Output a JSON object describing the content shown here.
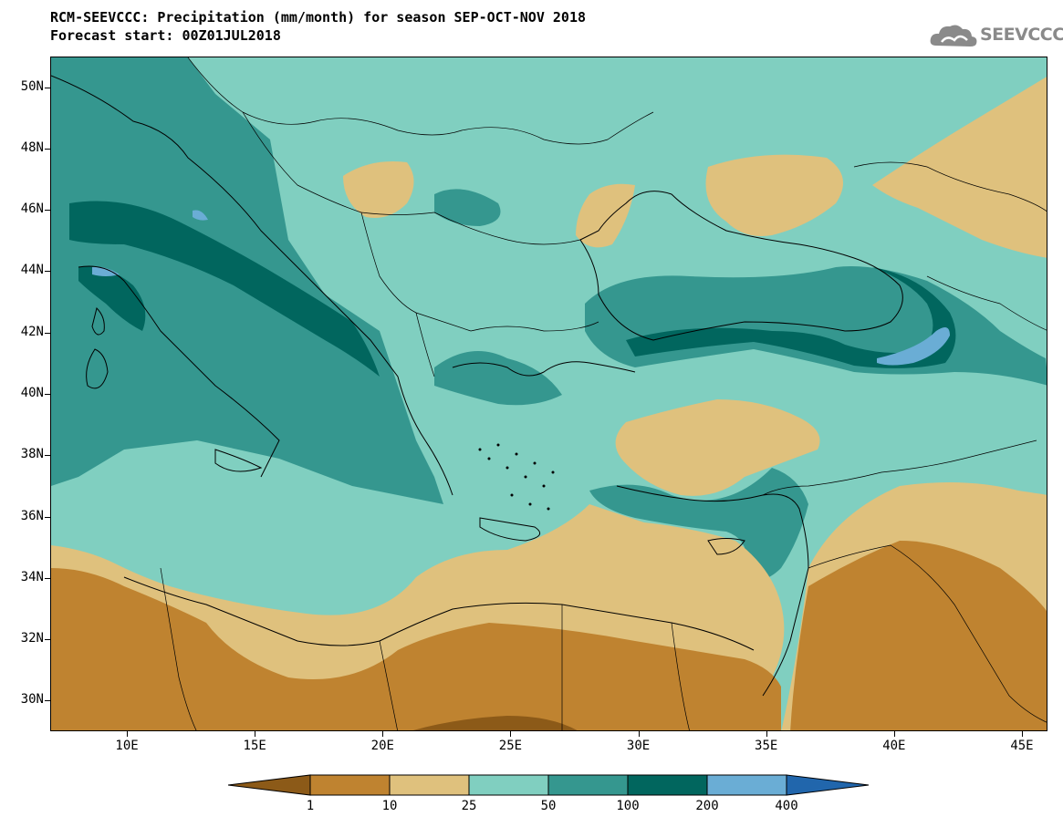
{
  "title": {
    "line1": "RCM-SEEVCCC: Precipitation (mm/month) for season SEP-OCT-NOV 2018",
    "line2": "Forecast start: 00Z01JUL2018"
  },
  "logo": {
    "text": "SEEVCCC",
    "icon": "cloud-icon"
  },
  "map": {
    "lon_range": [
      7,
      46
    ],
    "lat_range": [
      29,
      51
    ],
    "lat_ticks": [
      "50N",
      "48N",
      "46N",
      "44N",
      "42N",
      "40N",
      "38N",
      "36N",
      "34N",
      "32N",
      "30N"
    ],
    "lon_ticks": [
      "10E",
      "15E",
      "20E",
      "25E",
      "30E",
      "35E",
      "40E",
      "45E"
    ]
  },
  "colorbar": {
    "labels": [
      "1",
      "10",
      "25",
      "50",
      "100",
      "200",
      "400"
    ],
    "colors": [
      "#8c5a18",
      "#bf8330",
      "#dfc17d",
      "#80cfc0",
      "#35978f",
      "#01665e",
      "#6aadd5",
      "#2166ac"
    ]
  }
}
